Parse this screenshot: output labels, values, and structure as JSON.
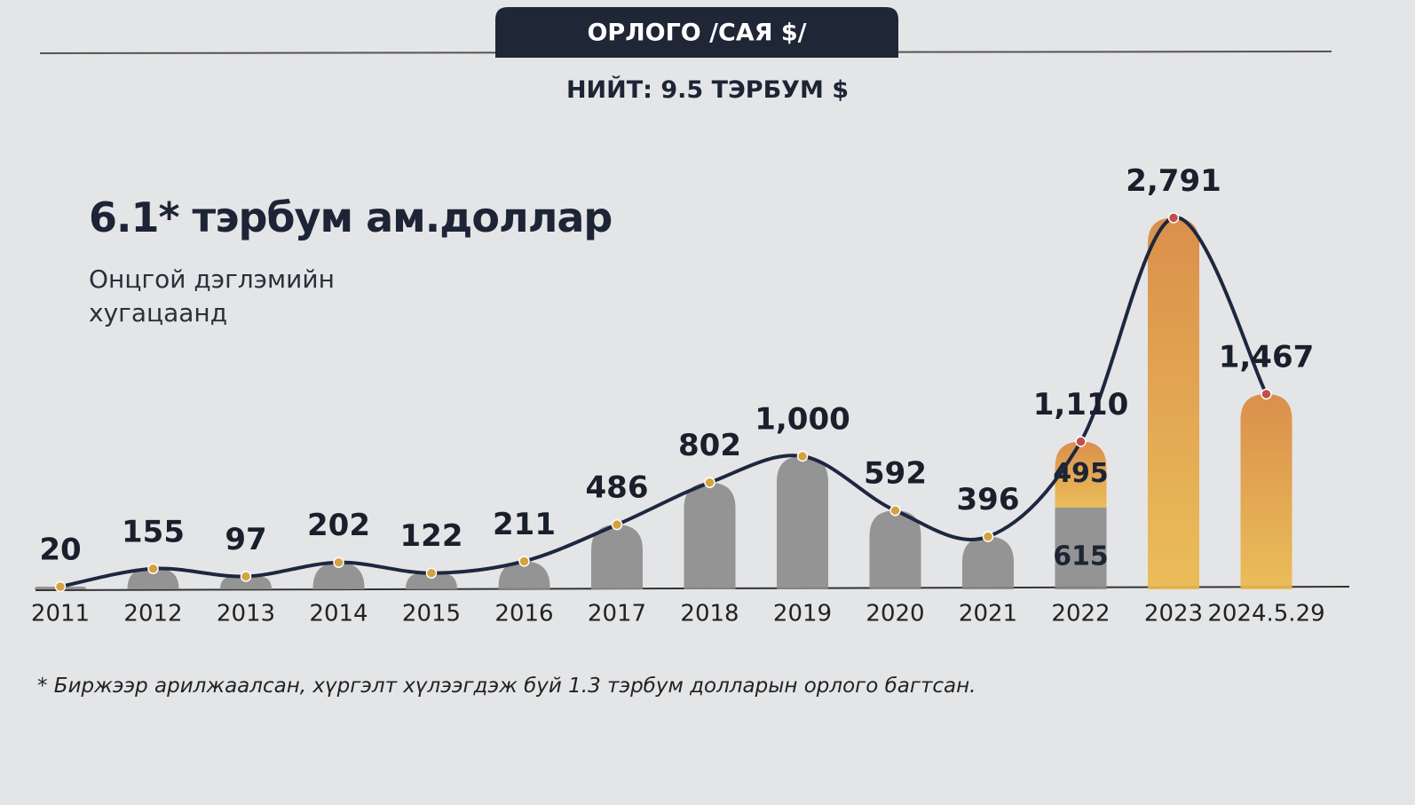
{
  "chart_data": {
    "type": "bar",
    "header": "ОРЛОГО /САЯ $/",
    "subtitle": "НИЙТ: 9.5 ТЭРБУМ $",
    "headline": "6.1* тэрбум ам.доллар",
    "note": "Онцгой дэглэмийн хугацаанд",
    "footnote": "* Биржээр арилжаалсан, хүргэлт хүлээгдэж буй 1.3 тэрбум долларын орлого багтсан.",
    "categories": [
      "2011",
      "2012",
      "2013",
      "2014",
      "2015",
      "2016",
      "2017",
      "2018",
      "2019",
      "2020",
      "2021",
      "2022",
      "2023",
      "2024.5.29"
    ],
    "series": [
      {
        "color": "#8b8b8b",
        "values": [
          20,
          155,
          97,
          202,
          122,
          211,
          486,
          802,
          1000,
          592,
          396,
          615,
          null,
          null
        ]
      },
      {
        "color": "#e0a040",
        "values": [
          null,
          null,
          null,
          null,
          null,
          null,
          null,
          null,
          null,
          null,
          null,
          495,
          2791,
          1467
        ]
      },
      {
        "type": "line",
        "color": "#1e2740",
        "values": [
          20,
          155,
          97,
          202,
          122,
          211,
          486,
          802,
          1000,
          592,
          396,
          1110,
          2791,
          1467
        ],
        "value_labels": [
          "20",
          "155",
          "97",
          "202",
          "122",
          "211",
          "486",
          "802",
          "1,000",
          "592",
          "396",
          "1,110",
          "2,791",
          "1,467"
        ]
      }
    ]
  }
}
